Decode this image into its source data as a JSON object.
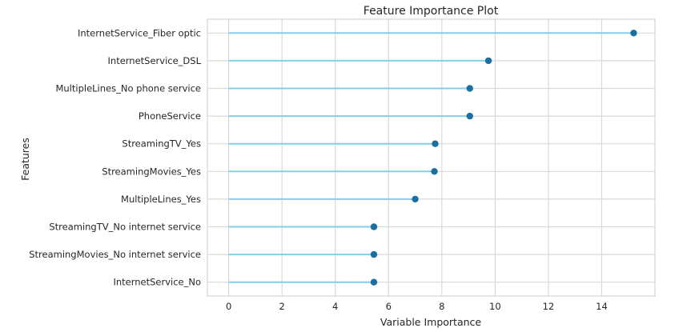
{
  "chart_data": {
    "type": "lollipop",
    "title": "Feature Importance Plot",
    "xlabel": "Variable Importance",
    "ylabel": "Features",
    "xlim": [
      -0.8,
      16.0
    ],
    "xticks": [
      0,
      2,
      4,
      6,
      8,
      10,
      12,
      14
    ],
    "grid": true,
    "stem_color": "#86cde8",
    "marker_color": "#1a6fa0",
    "categories": [
      "InternetService_Fiber optic",
      "InternetService_DSL",
      "MultipleLines_No phone service",
      "PhoneService",
      "StreamingTV_Yes",
      "StreamingMovies_Yes",
      "MultipleLines_Yes",
      "StreamingTV_No internet service",
      "StreamingMovies_No internet service",
      "InternetService_No"
    ],
    "values": [
      15.2,
      9.75,
      9.05,
      9.05,
      7.75,
      7.72,
      7.0,
      5.45,
      5.45,
      5.45
    ]
  }
}
